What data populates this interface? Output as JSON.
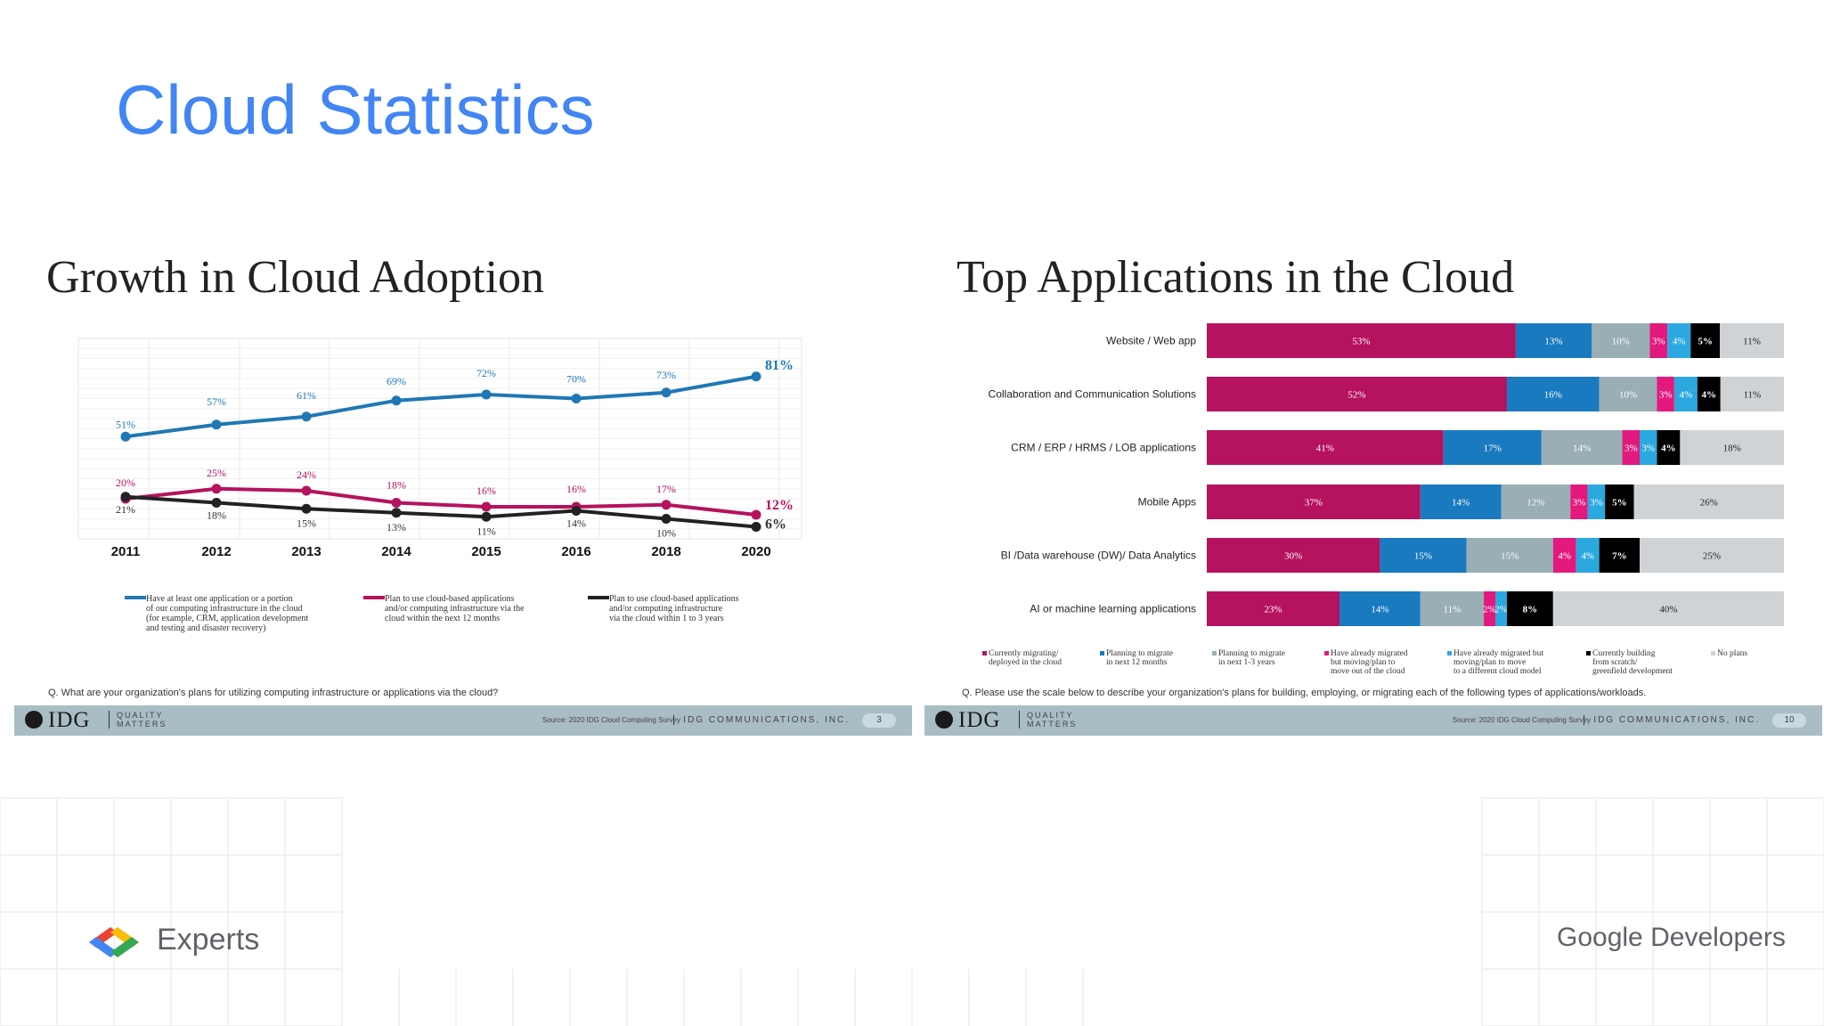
{
  "slide": {
    "title": "Cloud Statistics",
    "experts_label": "Experts",
    "google_label": "Google",
    "developers_label": "Developers"
  },
  "footer": {
    "logo": "IDG",
    "quality_1": "QUALITY",
    "quality_2": "MATTERS",
    "source": "Source: 2020 IDG Cloud Computing Survey",
    "company": "IDG COMMUNICATIONS, INC.",
    "left_page": "3",
    "right_page": "10"
  },
  "colors": {
    "title_blue": "#4285f4",
    "series_blue": "#1f78b4",
    "series_magenta": "#b5125f",
    "series_black": "#222222",
    "bar_magenta": "#b5125f",
    "bar_blue": "#1a7abf",
    "bar_gray": "#9aaeb5",
    "bar_pink": "#e3197e",
    "bar_lightblue": "#2ba8e0",
    "bar_black": "#000000",
    "bar_lightgray": "#cfd3d5"
  },
  "chart_data": [
    {
      "type": "line",
      "title": "Growth in Cloud Adoption",
      "question": "Q. What are your organization's plans for utilizing computing infrastructure or applications via the cloud?",
      "x": [
        "2011",
        "2012",
        "2013",
        "2014",
        "2015",
        "2016",
        "2018",
        "2020"
      ],
      "ylim": [
        0,
        100
      ],
      "grid": true,
      "legend_position": "bottom",
      "series": [
        {
          "name": "Have at least one application or a portion of our computing infrastructure in the cloud (for example, CRM, application development and testing and disaster recovery)",
          "name_lines": [
            "Have at least one application or a portion",
            "of our computing infrastructure in the cloud",
            "(for example, CRM, application development",
            "and testing and disaster recovery)"
          ],
          "color": "#1f78b4",
          "values": [
            51,
            57,
            61,
            69,
            72,
            70,
            73,
            81
          ],
          "labels": [
            "51%",
            "57%",
            "61%",
            "69%",
            "72%",
            "70%",
            "73%",
            "81%"
          ]
        },
        {
          "name": "Plan to use cloud-based applications and/or computing infrastructure via the cloud within the next 12 months",
          "name_lines": [
            "Plan to use cloud-based applications",
            "and/or computing infrastructure via the",
            "cloud within the next 12 months"
          ],
          "color": "#b5125f",
          "values": [
            20,
            25,
            24,
            18,
            16,
            16,
            17,
            12
          ],
          "labels": [
            "20%",
            "25%",
            "24%",
            "18%",
            "16%",
            "16%",
            "17%",
            "12%"
          ]
        },
        {
          "name": "Plan to use cloud-based applications and/or computing infrastructure via the cloud within 1 to 3 years",
          "name_lines": [
            "Plan to use cloud-based applications",
            "and/or computing infrastructure",
            "via the cloud within 1 to 3 years"
          ],
          "color": "#222222",
          "values": [
            21,
            18,
            15,
            13,
            11,
            14,
            10,
            6
          ],
          "labels": [
            "21%",
            "18%",
            "15%",
            "13%",
            "11%",
            "14%",
            "10%",
            "6%"
          ]
        }
      ]
    },
    {
      "type": "bar",
      "orientation": "horizontal",
      "stacked": true,
      "title": "Top Applications in the Cloud",
      "question": "Q. Please use the scale below to describe your organization's plans for building, employing, or migrating each of the following types of applications/workloads.",
      "categories": [
        "Website / Web app",
        "Collaboration and Communication Solutions",
        "CRM / ERP / HRMS / LOB applications",
        "Mobile Apps",
        "BI /Data warehouse (DW)/ Data Analytics",
        "AI or machine learning applications"
      ],
      "xlim": [
        0,
        100
      ],
      "legend_position": "bottom",
      "series": [
        {
          "name": "Currently migrating/ deployed in the cloud",
          "name_lines": [
            "Currently migrating/",
            "deployed in the cloud"
          ],
          "color": "#b5125f",
          "values": [
            53,
            52,
            41,
            37,
            30,
            23
          ]
        },
        {
          "name": "Planning to migrate in next 12 months",
          "name_lines": [
            "Planning to migrate",
            "in next 12 months"
          ],
          "color": "#1a7abf",
          "values": [
            13,
            16,
            17,
            14,
            15,
            14
          ]
        },
        {
          "name": "Planning to migrate in next 1-3 years",
          "name_lines": [
            "Planning to migrate",
            "in next 1-3 years"
          ],
          "color": "#9aaeb5",
          "values": [
            10,
            10,
            14,
            12,
            15,
            11
          ]
        },
        {
          "name": "Have already migrated but moving/plan to move out of the cloud",
          "name_lines": [
            "Have already migrated",
            "but moving/plan to",
            "move out of the cloud"
          ],
          "color": "#e3197e",
          "values": [
            3,
            3,
            3,
            3,
            4,
            2
          ]
        },
        {
          "name": "Have already migrated but moving/plan to move to a different cloud model",
          "name_lines": [
            "Have already migrated but",
            "moving/plan to move",
            "to a different cloud model"
          ],
          "color": "#2ba8e0",
          "values": [
            4,
            4,
            3,
            3,
            4,
            2
          ]
        },
        {
          "name": "Currently building from scratch/ greenfield development",
          "name_lines": [
            "Currently building",
            "from scratch/",
            "greenfield development"
          ],
          "color": "#000000",
          "values": [
            5,
            4,
            4,
            5,
            7,
            8
          ]
        },
        {
          "name": "No plans",
          "name_lines": [
            "No plans"
          ],
          "color": "#cfd3d5",
          "values": [
            11,
            11,
            18,
            26,
            25,
            40
          ]
        }
      ]
    }
  ]
}
